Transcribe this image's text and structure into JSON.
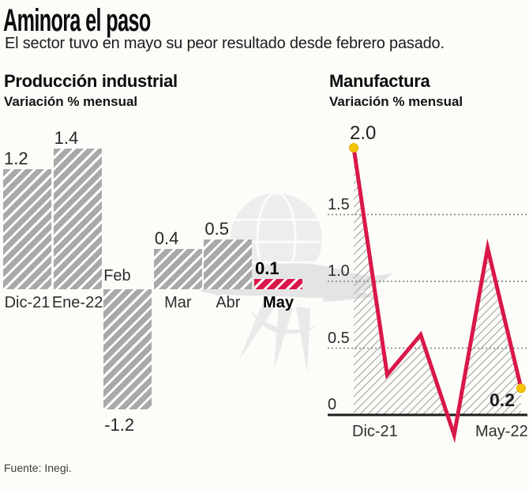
{
  "header": {
    "title": "Aminora el paso",
    "subtitle": "El sector tuvo en mayo su peor resultado desde febrero pasado."
  },
  "footer": {
    "source": "Fuente: Inegi."
  },
  "watermark": {
    "icon": "eagle-globe-watermark",
    "color": "#e9e9e9"
  },
  "colors": {
    "accent_red": "#d91749",
    "marker_yellow": "#f2c500",
    "bar_gray": "#a9a9a9",
    "area_hatch_gray": "#b3b3b3",
    "gridline_gray": "#8c8c8c",
    "axis_black": "#1c1c1c"
  },
  "chart_data": [
    {
      "type": "bar",
      "title": "Producción industrial",
      "subtitle": "Variación % mensual",
      "categories": [
        "Dic-21",
        "Ene-22",
        "Feb",
        "Mar",
        "Abr",
        "May"
      ],
      "values": [
        1.2,
        1.4,
        -1.2,
        0.4,
        0.5,
        0.1
      ],
      "value_labels": [
        "1.2",
        "1.4",
        "-1.2",
        "0.4",
        "0.5",
        "0.1"
      ],
      "highlight_index": 5,
      "bar_color": "#a9a9a9",
      "highlight_color": "#d91749",
      "hatch": "white-diagonal-stripes",
      "ylim": [
        -1.3,
        1.5
      ],
      "grid": false,
      "xlabel": "",
      "ylabel": "Variación % mensual"
    },
    {
      "type": "line",
      "title": "Manufactura",
      "subtitle": "Variación % mensual",
      "values": [
        2.0,
        0.3,
        0.6,
        -0.15,
        1.25,
        0.2
      ],
      "point_labels": {
        "first": "2.0",
        "last": "0.2"
      },
      "x_tick_labels": {
        "first": "Dic-21",
        "last": "May-22"
      },
      "yticks": [
        "0",
        "0.5",
        "1.0",
        "1.5"
      ],
      "ylim": [
        -0.3,
        2.2
      ],
      "grid": "dotted-horizontal",
      "line_color": "#d91749",
      "marker_color": "#f2c500",
      "area_fill": "gray-diagonal-hatch"
    }
  ]
}
